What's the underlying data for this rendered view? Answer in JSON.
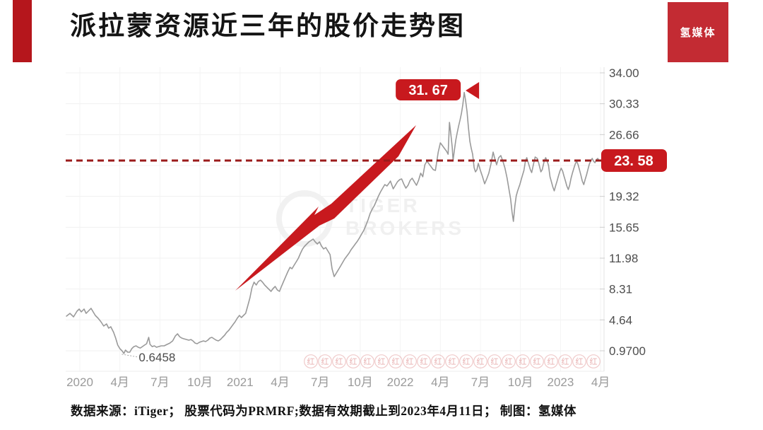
{
  "header": {
    "title": "派拉蒙资源近三年的股价走势图",
    "brand_badge": "氢媒体"
  },
  "footer": {
    "caption": "数据来源：iTiger； 股票代码为PRMRF;数据有效期截止到2023年4月11日； 制图：氢媒体"
  },
  "colors": {
    "accent_red": "#C8191E",
    "dashed_red": "#9B1B1B",
    "brand_red": "#C32B33",
    "bar_red": "#B5161C",
    "line_gray": "#9a9a9a",
    "grid_gray": "#f0f0f0"
  },
  "chart_data": {
    "type": "line",
    "title": "派拉蒙资源近三年的股价走势图",
    "xlabel": "",
    "ylabel": "",
    "grid": true,
    "legend": "none",
    "y_axis": {
      "range": [
        0.97,
        34.0
      ],
      "ticks": [
        {
          "label": "34.00",
          "value": 34.0
        },
        {
          "label": "30.33",
          "value": 30.33
        },
        {
          "label": "26.66",
          "value": 26.66
        },
        {
          "label": "19.32",
          "value": 19.32
        },
        {
          "label": "15.65",
          "value": 15.65
        },
        {
          "label": "11.98",
          "value": 11.98
        },
        {
          "label": "8.31",
          "value": 8.31
        },
        {
          "label": "4.64",
          "value": 4.64
        },
        {
          "label": "0.9700",
          "value": 0.97
        }
      ]
    },
    "x_axis": {
      "unit": "months-since-2020-01",
      "ticks": [
        {
          "label": "2020",
          "m": 0
        },
        {
          "label": "4月",
          "m": 3
        },
        {
          "label": "7月",
          "m": 6
        },
        {
          "label": "10月",
          "m": 9
        },
        {
          "label": "2021",
          "m": 12
        },
        {
          "label": "4月",
          "m": 15
        },
        {
          "label": "7月",
          "m": 18
        },
        {
          "label": "10月",
          "m": 21
        },
        {
          "label": "2022",
          "m": 24
        },
        {
          "label": "4月",
          "m": 27
        },
        {
          "label": "7月",
          "m": 30
        },
        {
          "label": "10月",
          "m": 33
        },
        {
          "label": "2023",
          "m": 36
        },
        {
          "label": "4月",
          "m": 39
        }
      ]
    },
    "series": [
      {
        "name": "PRMRF",
        "points": [
          [
            -1.0,
            5.09
          ],
          [
            -0.74,
            5.42
          ],
          [
            -0.47,
            5.0
          ],
          [
            -0.21,
            5.68
          ],
          [
            -0.05,
            5.93
          ],
          [
            0.11,
            5.59
          ],
          [
            0.32,
            5.93
          ],
          [
            0.47,
            5.42
          ],
          [
            0.68,
            5.76
          ],
          [
            0.84,
            6.01
          ],
          [
            1.0,
            5.59
          ],
          [
            1.16,
            5.17
          ],
          [
            1.37,
            4.84
          ],
          [
            1.58,
            4.42
          ],
          [
            1.79,
            3.91
          ],
          [
            2.0,
            4.16
          ],
          [
            2.16,
            3.66
          ],
          [
            2.32,
            3.83
          ],
          [
            2.53,
            3.16
          ],
          [
            2.68,
            2.48
          ],
          [
            2.84,
            1.64
          ],
          [
            3.0,
            1.22
          ],
          [
            3.16,
            0.97
          ],
          [
            3.3,
            0.65
          ],
          [
            3.42,
            1.05
          ],
          [
            3.58,
            0.8
          ],
          [
            3.74,
            0.8
          ],
          [
            3.89,
            1.22
          ],
          [
            4.05,
            1.47
          ],
          [
            4.21,
            1.56
          ],
          [
            4.37,
            1.39
          ],
          [
            4.53,
            1.3
          ],
          [
            4.68,
            1.47
          ],
          [
            4.84,
            1.64
          ],
          [
            5.0,
            1.81
          ],
          [
            5.16,
            2.57
          ],
          [
            5.26,
            1.73
          ],
          [
            5.42,
            1.47
          ],
          [
            5.58,
            1.56
          ],
          [
            5.74,
            1.39
          ],
          [
            5.89,
            1.47
          ],
          [
            6.1,
            1.56
          ],
          [
            6.32,
            1.56
          ],
          [
            6.53,
            1.73
          ],
          [
            6.74,
            1.89
          ],
          [
            6.95,
            2.15
          ],
          [
            7.16,
            2.74
          ],
          [
            7.32,
            2.99
          ],
          [
            7.47,
            2.65
          ],
          [
            7.63,
            2.48
          ],
          [
            7.79,
            2.4
          ],
          [
            8.0,
            2.31
          ],
          [
            8.16,
            2.23
          ],
          [
            8.32,
            2.31
          ],
          [
            8.47,
            2.15
          ],
          [
            8.63,
            1.89
          ],
          [
            8.79,
            1.81
          ],
          [
            8.95,
            1.98
          ],
          [
            9.1,
            2.06
          ],
          [
            9.26,
            2.15
          ],
          [
            9.42,
            2.06
          ],
          [
            9.58,
            2.23
          ],
          [
            9.74,
            2.48
          ],
          [
            9.89,
            2.57
          ],
          [
            10.05,
            2.4
          ],
          [
            10.21,
            2.23
          ],
          [
            10.37,
            2.15
          ],
          [
            10.53,
            2.31
          ],
          [
            10.68,
            2.57
          ],
          [
            10.84,
            2.82
          ],
          [
            11.0,
            3.16
          ],
          [
            11.16,
            3.41
          ],
          [
            11.32,
            3.74
          ],
          [
            11.47,
            4.08
          ],
          [
            11.63,
            4.42
          ],
          [
            11.79,
            4.84
          ],
          [
            11.95,
            5.17
          ],
          [
            12.1,
            4.92
          ],
          [
            12.26,
            5.17
          ],
          [
            12.42,
            5.42
          ],
          [
            12.58,
            6.35
          ],
          [
            12.74,
            7.27
          ],
          [
            12.89,
            8.45
          ],
          [
            13.05,
            9.12
          ],
          [
            13.21,
            8.79
          ],
          [
            13.37,
            9.21
          ],
          [
            13.53,
            9.37
          ],
          [
            13.68,
            9.12
          ],
          [
            13.84,
            8.79
          ],
          [
            14.0,
            8.53
          ],
          [
            14.16,
            8.28
          ],
          [
            14.32,
            8.03
          ],
          [
            14.47,
            8.37
          ],
          [
            14.63,
            8.62
          ],
          [
            14.79,
            8.2
          ],
          [
            14.95,
            8.03
          ],
          [
            15.1,
            8.62
          ],
          [
            15.26,
            9.21
          ],
          [
            15.42,
            9.79
          ],
          [
            15.58,
            10.38
          ],
          [
            15.74,
            10.89
          ],
          [
            15.89,
            10.72
          ],
          [
            16.05,
            11.14
          ],
          [
            16.21,
            11.56
          ],
          [
            16.37,
            11.98
          ],
          [
            16.53,
            12.57
          ],
          [
            16.68,
            13.07
          ],
          [
            16.84,
            13.41
          ],
          [
            17.0,
            13.66
          ],
          [
            17.16,
            13.91
          ],
          [
            17.32,
            14.08
          ],
          [
            17.47,
            14.25
          ],
          [
            17.63,
            13.91
          ],
          [
            17.79,
            13.66
          ],
          [
            17.95,
            13.91
          ],
          [
            18.1,
            13.41
          ],
          [
            18.26,
            13.07
          ],
          [
            18.42,
            13.24
          ],
          [
            18.58,
            12.82
          ],
          [
            18.74,
            12.4
          ],
          [
            18.89,
            10.72
          ],
          [
            19.05,
            9.79
          ],
          [
            19.21,
            10.21
          ],
          [
            19.37,
            10.63
          ],
          [
            19.53,
            11.05
          ],
          [
            19.68,
            11.47
          ],
          [
            19.84,
            11.9
          ],
          [
            20.0,
            12.23
          ],
          [
            20.16,
            12.57
          ],
          [
            20.32,
            12.99
          ],
          [
            20.47,
            13.32
          ],
          [
            20.63,
            13.66
          ],
          [
            20.79,
            14.0
          ],
          [
            20.95,
            14.42
          ],
          [
            21.1,
            14.84
          ],
          [
            21.26,
            15.26
          ],
          [
            21.42,
            15.85
          ],
          [
            21.58,
            16.52
          ],
          [
            21.74,
            17.28
          ],
          [
            21.89,
            17.78
          ],
          [
            22.05,
            18.2
          ],
          [
            22.21,
            18.79
          ],
          [
            22.37,
            19.38
          ],
          [
            22.53,
            19.88
          ],
          [
            22.68,
            20.3
          ],
          [
            22.84,
            20.72
          ],
          [
            23.0,
            20.55
          ],
          [
            23.16,
            20.89
          ],
          [
            23.26,
            21.14
          ],
          [
            23.47,
            20.22
          ],
          [
            23.63,
            20.64
          ],
          [
            23.79,
            21.06
          ],
          [
            23.95,
            21.31
          ],
          [
            24.1,
            21.39
          ],
          [
            24.26,
            20.8
          ],
          [
            24.42,
            20.3
          ],
          [
            24.58,
            20.64
          ],
          [
            24.74,
            21.23
          ],
          [
            24.89,
            21.48
          ],
          [
            25.05,
            21.06
          ],
          [
            25.21,
            20.64
          ],
          [
            25.37,
            21.23
          ],
          [
            25.53,
            22.07
          ],
          [
            25.68,
            21.65
          ],
          [
            25.84,
            23.08
          ],
          [
            26.0,
            23.5
          ],
          [
            26.16,
            23.16
          ],
          [
            26.32,
            22.82
          ],
          [
            26.47,
            22.49
          ],
          [
            26.63,
            22.4
          ],
          [
            26.84,
            24.59
          ],
          [
            27.0,
            25.68
          ],
          [
            27.16,
            25.34
          ],
          [
            27.32,
            25.0
          ],
          [
            27.47,
            24.67
          ],
          [
            27.58,
            24.33
          ],
          [
            27.68,
            28.12
          ],
          [
            27.79,
            26.69
          ],
          [
            27.89,
            25.17
          ],
          [
            27.95,
            23.58
          ],
          [
            28.05,
            24.76
          ],
          [
            28.16,
            26.02
          ],
          [
            28.26,
            26.86
          ],
          [
            28.37,
            27.7
          ],
          [
            28.47,
            28.37
          ],
          [
            28.58,
            29.21
          ],
          [
            28.68,
            30.22
          ],
          [
            28.79,
            31.67
          ],
          [
            28.89,
            30.73
          ],
          [
            29.0,
            29.38
          ],
          [
            29.1,
            27.54
          ],
          [
            29.21,
            25.86
          ],
          [
            29.32,
            25.0
          ],
          [
            29.42,
            24.33
          ],
          [
            29.53,
            22.74
          ],
          [
            29.63,
            22.23
          ],
          [
            29.74,
            22.49
          ],
          [
            29.84,
            23.24
          ],
          [
            30.0,
            22.4
          ],
          [
            30.16,
            21.65
          ],
          [
            30.32,
            20.81
          ],
          [
            30.47,
            21.39
          ],
          [
            30.63,
            22.07
          ],
          [
            30.79,
            23.16
          ],
          [
            30.95,
            24.59
          ],
          [
            31.05,
            24.0
          ],
          [
            31.21,
            23.08
          ],
          [
            31.37,
            23.92
          ],
          [
            31.53,
            24.17
          ],
          [
            31.68,
            23.5
          ],
          [
            31.84,
            22.66
          ],
          [
            32.0,
            21.48
          ],
          [
            32.16,
            19.97
          ],
          [
            32.26,
            19.04
          ],
          [
            32.37,
            17.45
          ],
          [
            32.47,
            16.35
          ],
          [
            32.58,
            18.2
          ],
          [
            32.68,
            19.38
          ],
          [
            32.79,
            19.97
          ],
          [
            32.95,
            20.72
          ],
          [
            33.1,
            21.56
          ],
          [
            33.26,
            22.4
          ],
          [
            33.37,
            23.5
          ],
          [
            33.47,
            23.92
          ],
          [
            33.58,
            23.33
          ],
          [
            33.74,
            22.49
          ],
          [
            33.84,
            22.15
          ],
          [
            34.0,
            23.33
          ],
          [
            34.1,
            24.0
          ],
          [
            34.26,
            23.83
          ],
          [
            34.37,
            23.24
          ],
          [
            34.53,
            22.23
          ],
          [
            34.63,
            22.49
          ],
          [
            34.79,
            23.58
          ],
          [
            34.89,
            23.92
          ],
          [
            35.0,
            23.5
          ],
          [
            35.1,
            23.0
          ],
          [
            35.21,
            21.65
          ],
          [
            35.32,
            21.06
          ],
          [
            35.42,
            20.47
          ],
          [
            35.53,
            19.97
          ],
          [
            35.63,
            20.55
          ],
          [
            35.74,
            21.14
          ],
          [
            35.84,
            21.73
          ],
          [
            35.95,
            22.32
          ],
          [
            36.05,
            22.66
          ],
          [
            36.16,
            22.32
          ],
          [
            36.26,
            21.73
          ],
          [
            36.37,
            21.14
          ],
          [
            36.47,
            20.55
          ],
          [
            36.58,
            20.13
          ],
          [
            36.68,
            20.64
          ],
          [
            36.79,
            21.48
          ],
          [
            36.89,
            22.07
          ],
          [
            37.0,
            22.66
          ],
          [
            37.1,
            23.16
          ],
          [
            37.21,
            23.5
          ],
          [
            37.32,
            23.08
          ],
          [
            37.42,
            22.49
          ],
          [
            37.53,
            21.82
          ],
          [
            37.63,
            21.14
          ],
          [
            37.74,
            20.72
          ],
          [
            37.84,
            21.31
          ],
          [
            37.95,
            21.9
          ],
          [
            38.05,
            22.49
          ],
          [
            38.16,
            23.16
          ],
          [
            38.26,
            23.5
          ],
          [
            38.37,
            23.83
          ],
          [
            38.47,
            23.5
          ],
          [
            38.58,
            23.33
          ],
          [
            38.68,
            23.66
          ],
          [
            38.79,
            23.83
          ],
          [
            38.89,
            23.58
          ]
        ]
      }
    ],
    "annotations": {
      "peak_label": "31. 67",
      "peak_value": 31.67,
      "peak_m": 28.79,
      "current_label": "23. 58",
      "current_value": 23.58,
      "target_line_value": 23.58,
      "low_label": "0.6458",
      "low_value": 0.6458,
      "low_m": 3.3
    },
    "watermarks": {
      "broker_line1": "TIGER",
      "broker_line2": "BROKERS",
      "stamp_char": "红",
      "stamp_count": 21
    }
  }
}
